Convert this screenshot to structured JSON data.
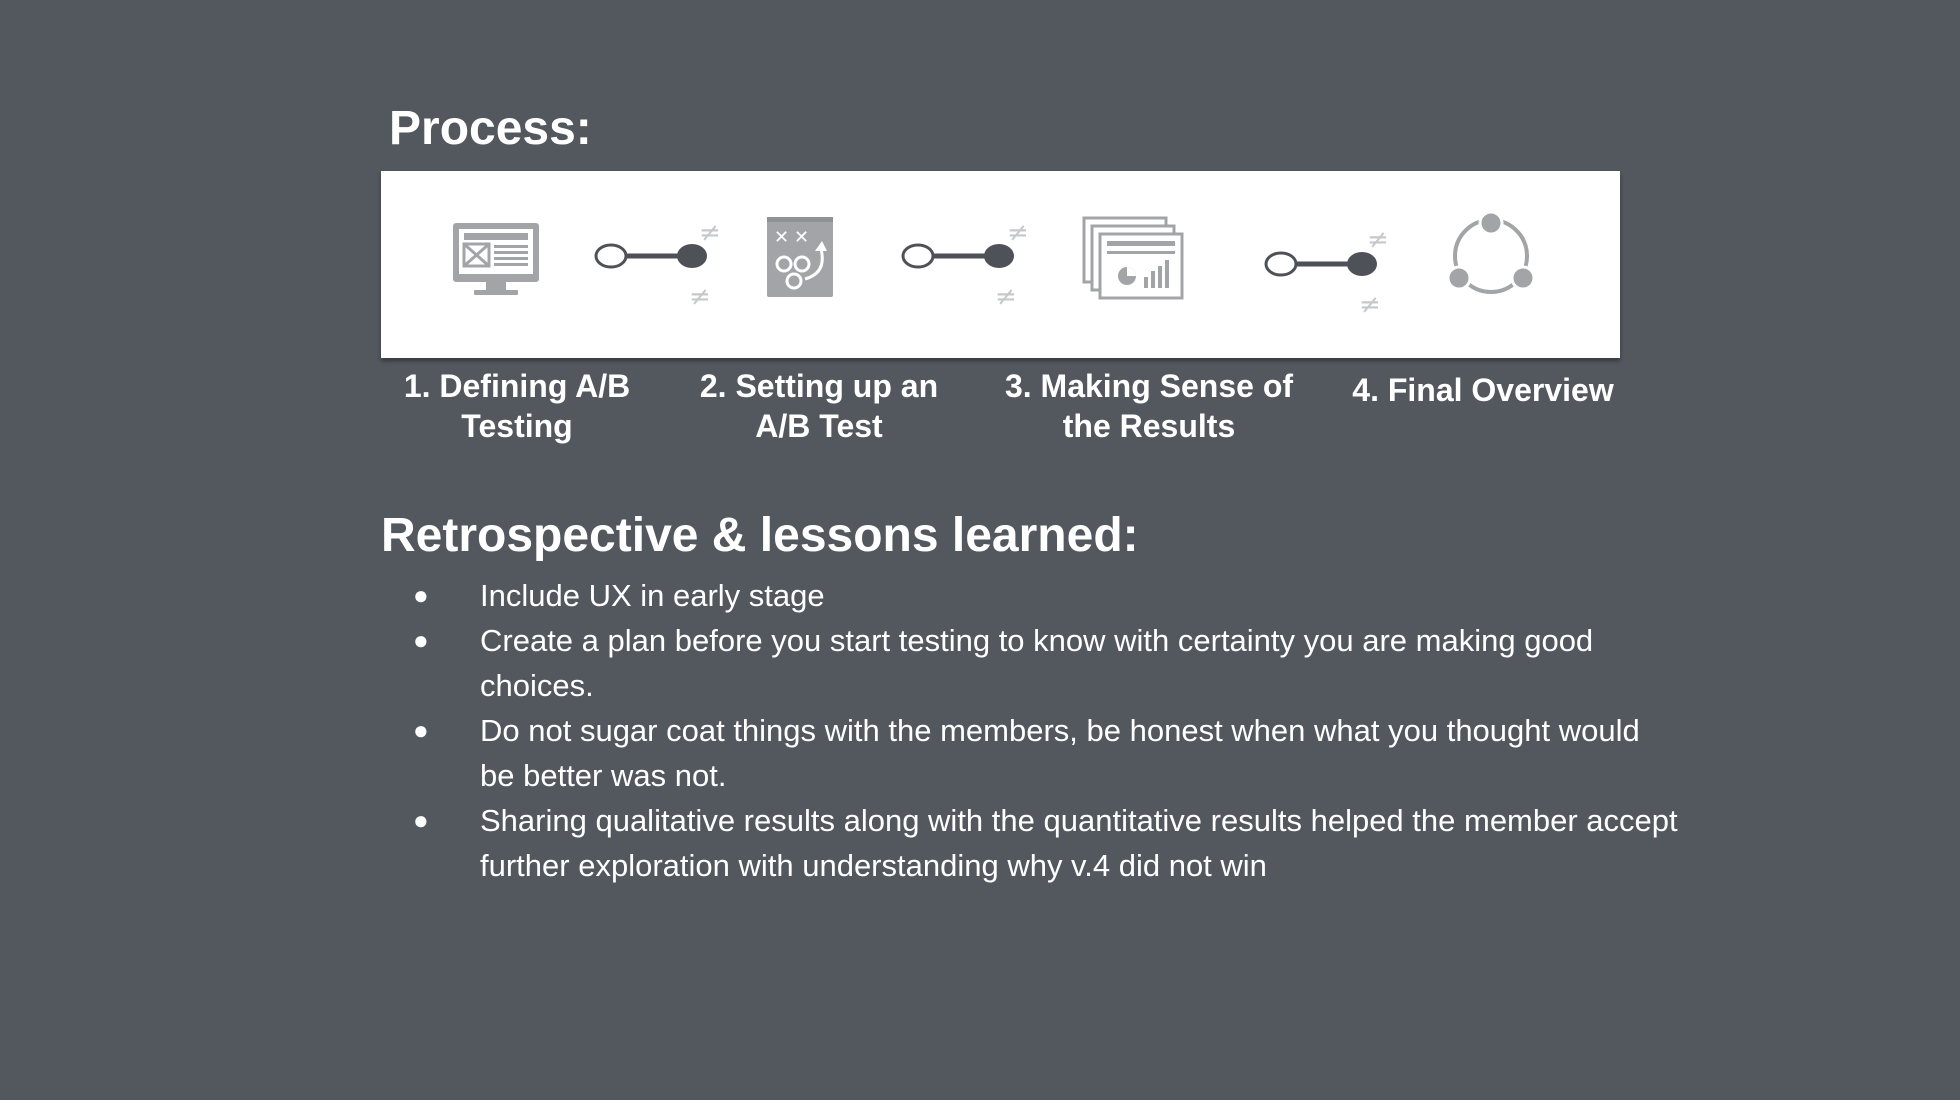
{
  "process": {
    "title": "Process:",
    "steps": [
      {
        "label": "1. Defining A/B\nTesting",
        "icon": "monitor-wireframe-icon"
      },
      {
        "label": "2. Setting up an\nA/B Test",
        "icon": "strategy-board-icon"
      },
      {
        "label": "3. Making Sense of\nthe Results",
        "icon": "report-stack-icon"
      },
      {
        "label": "4. Final Overview",
        "icon": "cycle-icon"
      }
    ],
    "connector_icon": "ab-toggle-connector-icon",
    "colors": {
      "band": "#ffffff",
      "icon_gray": "#a2a4a7",
      "connector_dark": "#4e5258"
    }
  },
  "retrospective": {
    "title": "Retrospective & lessons learned:",
    "bullet": "●",
    "items": [
      "Include UX in early stage",
      "Create a plan before you start testing to know with certainty you are making good choices.",
      "Do not sugar coat things with the members, be honest when what you thought would be better was not.",
      "Sharing qualitative results along with the quantitative results helped the member accept further exploration with understanding why v.4 did not win"
    ]
  },
  "colors": {
    "background": "#53575e",
    "text": "#ffffff"
  }
}
